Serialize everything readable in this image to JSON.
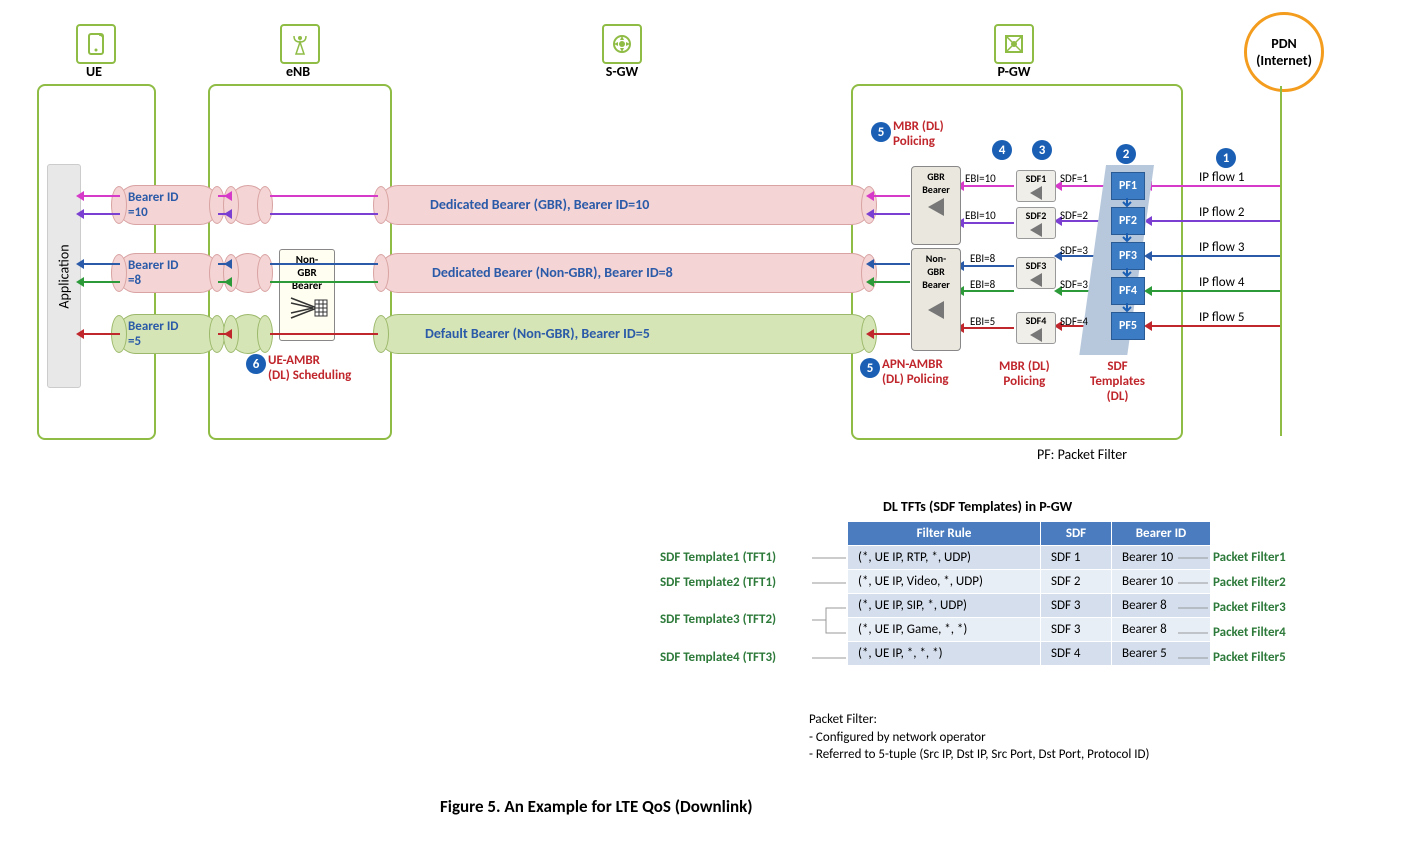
{
  "nodes": {
    "ue": "UE",
    "enb": "eNB",
    "sgw": "S-GW",
    "pgw": "P-GW",
    "pdn1": "PDN",
    "pdn2": "(Internet)"
  },
  "app": "Application",
  "bearers": {
    "b10": {
      "label": "Dedicated Bearer (GBR), Bearer ID=10",
      "id_text": "Bearer ID\n=10"
    },
    "b8": {
      "label": "Dedicated Bearer (Non-GBR), Bearer ID=8",
      "id_text": "Bearer ID\n=8"
    },
    "b5": {
      "label": "Default Bearer (Non-GBR), Bearer ID=5",
      "id_text": "Bearer ID\n=5"
    }
  },
  "pgw_internal": {
    "gbr_bearer": "GBR\nBearer",
    "nongbr_bearer": "Non-\nGBR\nBearer",
    "sdfs": [
      "SDF1",
      "SDF2",
      "SDF3",
      "SDF4"
    ],
    "pfs": [
      "PF1",
      "PF2",
      "PF3",
      "PF4",
      "PF5"
    ],
    "ebis": [
      "EBI=10",
      "EBI=10",
      "EBI=8",
      "EBI=8",
      "EBI=5"
    ],
    "sdf_eq": [
      "SDF=1",
      "SDF=2",
      "SDF=3",
      "SDF=3",
      "SDF=4"
    ]
  },
  "flows": [
    "IP flow 1",
    "IP flow 2",
    "IP flow 3",
    "IP flow 4",
    "IP flow 5"
  ],
  "flow_colors": [
    "#d63ac9",
    "#7b3fd1",
    "#2a5aa8",
    "#2d9a3a",
    "#c0272d"
  ],
  "steps": {
    "s1": "1",
    "s2": "2",
    "s3": "3",
    "s4": "4",
    "s5a": "5",
    "s5b": "5",
    "s6": "6"
  },
  "red_labels": {
    "mbr_dl_policing_top": "MBR (DL)\nPolicing",
    "apn_ambr": "APN-AMBR\n(DL) Policing",
    "mbr_dl_policing_btm": "MBR (DL)\nPolicing",
    "sdf_templates": "SDF\nTemplates\n(DL)",
    "ue_ambr": "UE-AMBR\n(DL) Scheduling"
  },
  "nongbr_enb": "Non-\nGBR\nBearer",
  "pf_legend": "PF: Packet Filter",
  "table": {
    "title": "DL TFTs (SDF Templates) in P-GW",
    "headers": [
      "Filter Rule",
      "SDF",
      "Bearer ID"
    ],
    "rows": [
      [
        "(*, UE IP, RTP, *, UDP)",
        "SDF 1",
        "Bearer 10"
      ],
      [
        "(*, UE IP, Video, *, UDP)",
        "SDF 2",
        "Bearer 10"
      ],
      [
        "(*, UE IP, SIP, *, UDP)",
        "SDF 3",
        "Bearer 8"
      ],
      [
        "(*, UE IP, Game, *, *)",
        "SDF 3",
        "Bearer 8"
      ],
      [
        "(*, UE IP, *, *, *)",
        "SDF 4",
        "Bearer 5"
      ]
    ],
    "left_labels": [
      "SDF Template1 (TFT1)",
      "SDF Template2 (TFT1)",
      "SDF Template3 (TFT2)",
      "SDF Template4 (TFT3)"
    ],
    "right_labels": [
      "Packet Filter1",
      "Packet Filter2",
      "Packet Filter3",
      "Packet Filter4",
      "Packet Filter5"
    ]
  },
  "notes": {
    "title": "Packet Filter:",
    "l1": "- Configured by network operator",
    "l2": "- Referred to 5-tuple (Src IP, Dst IP, Src Port, Dst Port, Protocol ID)"
  },
  "caption": "Figure 5. An Example for LTE QoS (Downlink)"
}
